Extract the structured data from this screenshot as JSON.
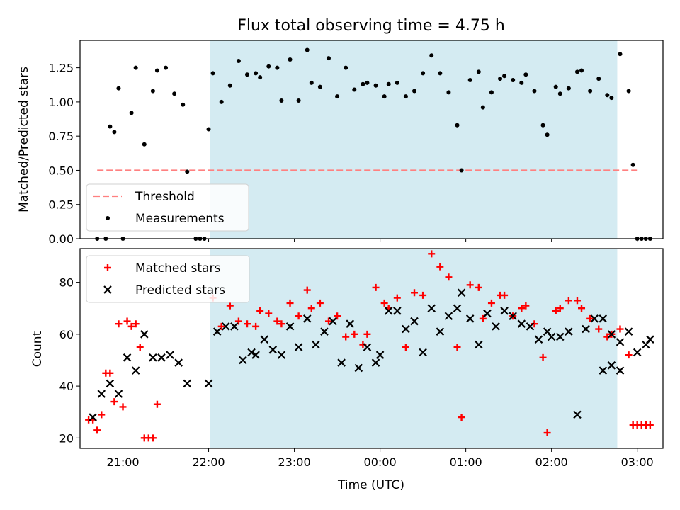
{
  "chart_data": [
    {
      "type": "scatter",
      "title": "Flux total observing time = 4.75 h",
      "ylabel": "Matched/Predicted stars",
      "ylim": [
        0,
        1.45
      ],
      "yticks": [
        "0.00",
        "0.25",
        "0.50",
        "0.75",
        "1.00",
        "1.25"
      ],
      "ytick_values": [
        0,
        0.25,
        0.5,
        0.75,
        1.0,
        1.25
      ],
      "xlim": [
        "20:30",
        "03:18"
      ],
      "xticks": [
        "21:00",
        "22:00",
        "23:00",
        "00:00",
        "01:00",
        "02:00",
        "03:00"
      ],
      "shaded_span": {
        "start": "22:01",
        "end": "02:46",
        "color": "#add8e6"
      },
      "threshold": {
        "name": "Threshold",
        "value": 0.5,
        "start": "20:42",
        "end": "03:02",
        "color": "#ff8080"
      },
      "legend": {
        "placement": "lower-left",
        "entries": [
          "Threshold",
          "Measurements"
        ]
      },
      "series": [
        {
          "name": "Measurements",
          "color": "#000000",
          "points": [
            [
              "20:42",
              0.0
            ],
            [
              "20:48",
              0.0
            ],
            [
              "20:51",
              0.82
            ],
            [
              "20:54",
              0.78
            ],
            [
              "20:57",
              1.1
            ],
            [
              "21:00",
              0.0
            ],
            [
              "21:06",
              0.92
            ],
            [
              "21:09",
              1.25
            ],
            [
              "21:15",
              0.69
            ],
            [
              "21:21",
              1.08
            ],
            [
              "21:24",
              1.23
            ],
            [
              "21:30",
              1.25
            ],
            [
              "21:36",
              1.06
            ],
            [
              "21:42",
              0.98
            ],
            [
              "21:45",
              0.49
            ],
            [
              "21:51",
              0.0
            ],
            [
              "21:54",
              0.0
            ],
            [
              "21:57",
              0.0
            ],
            [
              "22:00",
              0.8
            ],
            [
              "22:03",
              1.21
            ],
            [
              "22:09",
              1.0
            ],
            [
              "22:15",
              1.12
            ],
            [
              "22:21",
              1.3
            ],
            [
              "22:27",
              1.2
            ],
            [
              "22:33",
              1.21
            ],
            [
              "22:36",
              1.18
            ],
            [
              "22:42",
              1.26
            ],
            [
              "22:48",
              1.25
            ],
            [
              "22:51",
              1.01
            ],
            [
              "22:57",
              1.31
            ],
            [
              "23:03",
              1.01
            ],
            [
              "23:09",
              1.38
            ],
            [
              "23:12",
              1.14
            ],
            [
              "23:18",
              1.11
            ],
            [
              "23:24",
              1.32
            ],
            [
              "23:30",
              1.04
            ],
            [
              "23:36",
              1.25
            ],
            [
              "23:42",
              1.09
            ],
            [
              "23:48",
              1.13
            ],
            [
              "23:51",
              1.14
            ],
            [
              "23:57",
              1.12
            ],
            [
              "00:03",
              1.04
            ],
            [
              "00:06",
              1.13
            ],
            [
              "00:12",
              1.14
            ],
            [
              "00:18",
              1.04
            ],
            [
              "00:24",
              1.08
            ],
            [
              "00:30",
              1.21
            ],
            [
              "00:36",
              1.34
            ],
            [
              "00:42",
              1.21
            ],
            [
              "00:48",
              1.07
            ],
            [
              "00:54",
              0.83
            ],
            [
              "00:57",
              0.5
            ],
            [
              "01:03",
              1.16
            ],
            [
              "01:09",
              1.22
            ],
            [
              "01:12",
              0.96
            ],
            [
              "01:18",
              1.07
            ],
            [
              "01:24",
              1.17
            ],
            [
              "01:27",
              1.19
            ],
            [
              "01:33",
              1.16
            ],
            [
              "01:39",
              1.14
            ],
            [
              "01:42",
              1.2
            ],
            [
              "01:48",
              1.08
            ],
            [
              "01:54",
              0.83
            ],
            [
              "01:57",
              0.76
            ],
            [
              "02:03",
              1.11
            ],
            [
              "02:06",
              1.06
            ],
            [
              "02:12",
              1.1
            ],
            [
              "02:18",
              1.22
            ],
            [
              "02:21",
              1.23
            ],
            [
              "02:27",
              1.08
            ],
            [
              "02:33",
              1.17
            ],
            [
              "02:39",
              1.05
            ],
            [
              "02:42",
              1.03
            ],
            [
              "02:48",
              1.35
            ],
            [
              "02:54",
              1.08
            ],
            [
              "02:57",
              0.54
            ],
            [
              "03:00",
              0.0
            ],
            [
              "03:03",
              0.0
            ],
            [
              "03:06",
              0.0
            ],
            [
              "03:09",
              0.0
            ]
          ]
        }
      ]
    },
    {
      "type": "scatter",
      "xlabel": "Time (UTC)",
      "ylabel": "Count",
      "ylim": [
        16,
        93
      ],
      "yticks": [
        "20",
        "40",
        "60",
        "80"
      ],
      "ytick_values": [
        20,
        40,
        60,
        80
      ],
      "xlim": [
        "20:30",
        "03:18"
      ],
      "xticks": [
        "21:00",
        "22:00",
        "23:00",
        "00:00",
        "01:00",
        "02:00",
        "03:00"
      ],
      "shaded_span": {
        "start": "22:01",
        "end": "02:46",
        "color": "#add8e6"
      },
      "legend": {
        "placement": "upper-left",
        "entries": [
          "Matched stars",
          "Predicted stars"
        ]
      },
      "series": [
        {
          "name": "Matched stars",
          "marker": "+",
          "color": "#ff0000",
          "points": [
            [
              "20:36",
              27
            ],
            [
              "20:39",
              27
            ],
            [
              "20:42",
              23
            ],
            [
              "20:45",
              29
            ],
            [
              "20:48",
              45
            ],
            [
              "20:51",
              45
            ],
            [
              "20:54",
              34
            ],
            [
              "20:57",
              64
            ],
            [
              "21:00",
              32
            ],
            [
              "21:03",
              65
            ],
            [
              "21:06",
              63
            ],
            [
              "21:09",
              64
            ],
            [
              "21:12",
              55
            ],
            [
              "21:15",
              20
            ],
            [
              "21:18",
              20
            ],
            [
              "21:21",
              20
            ],
            [
              "21:24",
              33
            ],
            [
              "22:03",
              74
            ],
            [
              "22:09",
              63
            ],
            [
              "22:15",
              71
            ],
            [
              "22:21",
              65
            ],
            [
              "22:27",
              64
            ],
            [
              "22:33",
              63
            ],
            [
              "22:36",
              69
            ],
            [
              "22:42",
              68
            ],
            [
              "22:48",
              65
            ],
            [
              "22:51",
              64
            ],
            [
              "22:57",
              72
            ],
            [
              "23:03",
              67
            ],
            [
              "23:09",
              77
            ],
            [
              "23:12",
              70
            ],
            [
              "23:18",
              72
            ],
            [
              "23:24",
              65
            ],
            [
              "23:30",
              67
            ],
            [
              "23:36",
              59
            ],
            [
              "23:42",
              60
            ],
            [
              "23:48",
              56
            ],
            [
              "23:51",
              60
            ],
            [
              "23:57",
              78
            ],
            [
              "00:03",
              72
            ],
            [
              "00:06",
              70
            ],
            [
              "00:12",
              74
            ],
            [
              "00:18",
              55
            ],
            [
              "00:24",
              76
            ],
            [
              "00:30",
              75
            ],
            [
              "00:36",
              91
            ],
            [
              "00:42",
              86
            ],
            [
              "00:48",
              82
            ],
            [
              "00:54",
              55
            ],
            [
              "00:57",
              28
            ],
            [
              "01:03",
              79
            ],
            [
              "01:09",
              78
            ],
            [
              "01:12",
              66
            ],
            [
              "01:18",
              72
            ],
            [
              "01:24",
              75
            ],
            [
              "01:27",
              75
            ],
            [
              "01:33",
              67
            ],
            [
              "01:39",
              70
            ],
            [
              "01:42",
              71
            ],
            [
              "01:48",
              64
            ],
            [
              "01:54",
              51
            ],
            [
              "01:57",
              22
            ],
            [
              "02:03",
              69
            ],
            [
              "02:06",
              70
            ],
            [
              "02:12",
              73
            ],
            [
              "02:18",
              73
            ],
            [
              "02:21",
              70
            ],
            [
              "02:27",
              66
            ],
            [
              "02:33",
              62
            ],
            [
              "02:39",
              59
            ],
            [
              "02:42",
              60
            ],
            [
              "02:48",
              62
            ],
            [
              "02:54",
              52
            ],
            [
              "02:57",
              25
            ],
            [
              "03:00",
              25
            ],
            [
              "03:03",
              25
            ],
            [
              "03:06",
              25
            ],
            [
              "03:09",
              25
            ]
          ]
        },
        {
          "name": "Predicted stars",
          "marker": "x",
          "color": "#000000",
          "points": [
            [
              "20:39",
              28
            ],
            [
              "20:45",
              37
            ],
            [
              "20:51",
              41
            ],
            [
              "20:57",
              37
            ],
            [
              "21:03",
              51
            ],
            [
              "21:09",
              46
            ],
            [
              "21:15",
              60
            ],
            [
              "21:21",
              51
            ],
            [
              "21:27",
              51
            ],
            [
              "21:33",
              52
            ],
            [
              "21:39",
              49
            ],
            [
              "21:45",
              41
            ],
            [
              "22:00",
              41
            ],
            [
              "22:06",
              61
            ],
            [
              "22:12",
              63
            ],
            [
              "22:18",
              63
            ],
            [
              "22:24",
              50
            ],
            [
              "22:30",
              53
            ],
            [
              "22:33",
              52
            ],
            [
              "22:39",
              58
            ],
            [
              "22:45",
              54
            ],
            [
              "22:51",
              52
            ],
            [
              "22:57",
              63
            ],
            [
              "23:03",
              55
            ],
            [
              "23:09",
              66
            ],
            [
              "23:15",
              56
            ],
            [
              "23:21",
              61
            ],
            [
              "23:27",
              65
            ],
            [
              "23:33",
              49
            ],
            [
              "23:39",
              64
            ],
            [
              "23:45",
              47
            ],
            [
              "23:51",
              55
            ],
            [
              "23:57",
              49
            ],
            [
              "00:00",
              52
            ],
            [
              "00:06",
              69
            ],
            [
              "00:12",
              69
            ],
            [
              "00:18",
              62
            ],
            [
              "00:24",
              65
            ],
            [
              "00:30",
              53
            ],
            [
              "00:36",
              70
            ],
            [
              "00:42",
              61
            ],
            [
              "00:48",
              67
            ],
            [
              "00:54",
              70
            ],
            [
              "00:57",
              76
            ],
            [
              "01:03",
              66
            ],
            [
              "01:09",
              56
            ],
            [
              "01:15",
              68
            ],
            [
              "01:21",
              63
            ],
            [
              "01:27",
              69
            ],
            [
              "01:33",
              67
            ],
            [
              "01:39",
              64
            ],
            [
              "01:45",
              63
            ],
            [
              "01:51",
              58
            ],
            [
              "01:57",
              61
            ],
            [
              "02:00",
              59
            ],
            [
              "02:06",
              59
            ],
            [
              "02:12",
              61
            ],
            [
              "02:18",
              29
            ],
            [
              "02:24",
              62
            ],
            [
              "02:30",
              66
            ],
            [
              "02:36",
              66
            ],
            [
              "02:42",
              60
            ],
            [
              "02:48",
              57
            ],
            [
              "02:54",
              61
            ],
            [
              "03:00",
              53
            ],
            [
              "03:06",
              56
            ],
            [
              "03:09",
              58
            ],
            [
              "02:36",
              46
            ],
            [
              "02:42",
              48
            ],
            [
              "02:48",
              46
            ]
          ]
        }
      ]
    }
  ]
}
